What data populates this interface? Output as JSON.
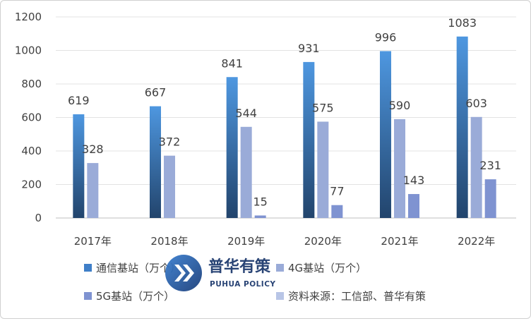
{
  "chart_data": {
    "type": "bar",
    "categories": [
      "2017年",
      "2018年",
      "2019年",
      "2020年",
      "2021年",
      "2022年"
    ],
    "series": [
      {
        "name": "通信基站（万个）",
        "values": [
          619,
          667,
          841,
          931,
          996,
          1083
        ],
        "color": "#4a8fd8",
        "color_dark": "#24466f"
      },
      {
        "name": "4G基站（万个）",
        "values": [
          328,
          372,
          544,
          575,
          590,
          603
        ],
        "color": "#9aabd8"
      },
      {
        "name": "5G基站（万个）",
        "values": [
          null,
          null,
          15,
          77,
          143,
          231
        ],
        "color": "#7f93d1"
      }
    ],
    "yticks": [
      0,
      200,
      400,
      600,
      800,
      1000,
      1200
    ],
    "ylim": [
      0,
      1200
    ],
    "grid": true,
    "legend": [
      {
        "label": "通信基站（万个）",
        "color": "#3f7fc8"
      },
      {
        "label": "4G基站（万个）",
        "color": "#9aabd8"
      },
      {
        "label": "5G基站（万个）",
        "color": "#7f93d1"
      },
      {
        "label": "资料来源：工信部、普华有策",
        "color": "#b8c5e6"
      }
    ]
  },
  "watermark": {
    "title": "普华有策",
    "subtitle": "PUHUA POLICY"
  }
}
